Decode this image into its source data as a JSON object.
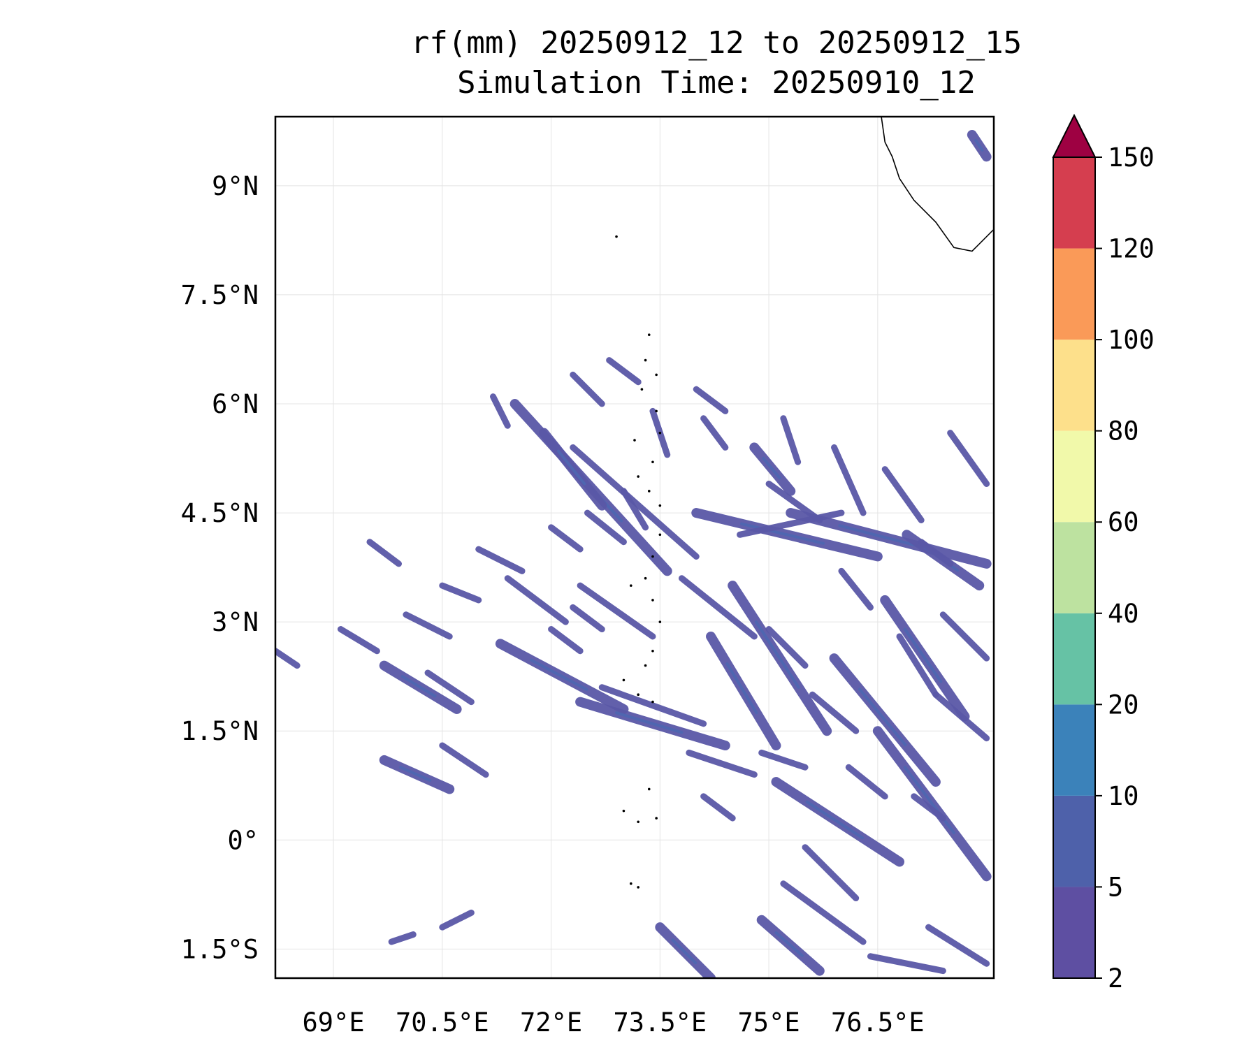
{
  "title": {
    "line1": "rf(mm) 20250912_12 to 20250912_15",
    "line2": "Simulation Time: 20250910_12"
  },
  "map": {
    "extent_lon": [
      68.2,
      78.1
    ],
    "extent_lat": [
      -1.9,
      9.95
    ],
    "lon_ticks": [
      {
        "value": 69.0,
        "label": "69°E"
      },
      {
        "value": 70.5,
        "label": "70.5°E"
      },
      {
        "value": 72.0,
        "label": "72°E"
      },
      {
        "value": 73.5,
        "label": "73.5°E"
      },
      {
        "value": 75.0,
        "label": "75°E"
      },
      {
        "value": 76.5,
        "label": "76.5°E"
      }
    ],
    "lat_ticks": [
      {
        "value": 9.0,
        "label": "9°N"
      },
      {
        "value": 7.5,
        "label": "7.5°N"
      },
      {
        "value": 6.0,
        "label": "6°N"
      },
      {
        "value": 4.5,
        "label": "4.5°N"
      },
      {
        "value": 3.0,
        "label": "3°N"
      },
      {
        "value": 1.5,
        "label": "1.5°N"
      },
      {
        "value": 0.0,
        "label": "0°"
      },
      {
        "value": -1.5,
        "label": "1.5°S"
      }
    ],
    "grid": true,
    "coastline_color": "#000000",
    "rain_color_main": "#5a57a6",
    "rain_color_mid": "#4f66b0"
  },
  "colorbar": {
    "levels": [
      {
        "label": "2",
        "color": "#5e4fa2"
      },
      {
        "label": "5",
        "color": "#4e61aa"
      },
      {
        "label": "10",
        "color": "#3b82ba"
      },
      {
        "label": "20",
        "color": "#66c2a5"
      },
      {
        "label": "40",
        "color": "#bde2a0"
      },
      {
        "label": "60",
        "color": "#f1f9aa"
      },
      {
        "label": "80",
        "color": "#fde08b"
      },
      {
        "label": "100",
        "color": "#fa9a58"
      },
      {
        "label": "120",
        "color": "#d53e4f"
      },
      {
        "label": "150",
        "color": ""
      }
    ],
    "extend_color": "#9e0142",
    "extend": "max"
  },
  "rain_bands": [
    [
      71.5,
      6.0,
      73.6,
      3.7,
      1
    ],
    [
      72.3,
      5.4,
      74.0,
      3.9,
      0
    ],
    [
      71.9,
      5.6,
      72.7,
      4.6,
      1
    ],
    [
      73.4,
      5.9,
      73.6,
      5.3,
      0
    ],
    [
      74.1,
      5.8,
      74.4,
      5.4,
      0
    ],
    [
      74.0,
      4.5,
      76.5,
      3.9,
      1
    ],
    [
      74.6,
      4.2,
      76.0,
      4.5,
      0
    ],
    [
      75.3,
      4.5,
      78.0,
      3.8,
      1
    ],
    [
      76.9,
      4.2,
      77.9,
      3.5,
      1
    ],
    [
      76.6,
      5.1,
      77.1,
      4.4,
      0
    ],
    [
      75.9,
      5.4,
      76.3,
      4.5,
      0
    ],
    [
      75.2,
      5.8,
      75.4,
      5.2,
      0
    ],
    [
      71.3,
      2.7,
      73.0,
      1.8,
      1
    ],
    [
      72.4,
      3.5,
      73.4,
      2.8,
      0
    ],
    [
      72.4,
      1.9,
      74.4,
      1.3,
      1
    ],
    [
      72.7,
      2.1,
      74.1,
      1.6,
      0
    ],
    [
      73.8,
      3.6,
      74.8,
      2.8,
      0
    ],
    [
      74.2,
      2.8,
      75.1,
      1.3,
      1
    ],
    [
      74.5,
      3.5,
      75.8,
      1.5,
      1
    ],
    [
      75.9,
      2.5,
      77.3,
      0.8,
      1
    ],
    [
      76.6,
      3.3,
      77.7,
      1.7,
      1
    ],
    [
      77.3,
      2.0,
      78.0,
      1.4,
      0
    ],
    [
      76.5,
      1.5,
      78.0,
      -0.5,
      1
    ],
    [
      75.5,
      -0.1,
      76.2,
      -0.8,
      0
    ],
    [
      75.1,
      0.8,
      76.8,
      -0.3,
      1
    ],
    [
      75.2,
      -0.6,
      76.3,
      -1.4,
      0
    ],
    [
      74.9,
      -1.1,
      75.7,
      -1.8,
      1
    ],
    [
      73.5,
      -1.2,
      74.2,
      -1.9,
      1
    ],
    [
      76.4,
      -1.6,
      77.4,
      -1.8,
      0
    ],
    [
      77.2,
      -1.2,
      78.0,
      -1.7,
      0
    ],
    [
      69.7,
      2.4,
      70.7,
      1.8,
      1
    ],
    [
      70.3,
      2.3,
      70.9,
      1.9,
      0
    ],
    [
      69.7,
      1.1,
      70.6,
      0.7,
      1
    ],
    [
      70.5,
      1.3,
      71.1,
      0.9,
      0
    ],
    [
      68.2,
      2.6,
      68.5,
      2.4,
      0
    ],
    [
      69.1,
      2.9,
      69.6,
      2.6,
      0
    ],
    [
      70.0,
      3.1,
      70.6,
      2.8,
      0
    ],
    [
      70.5,
      3.5,
      71.0,
      3.3,
      0
    ],
    [
      71.0,
      4.0,
      71.6,
      3.7,
      0
    ],
    [
      71.4,
      3.6,
      72.2,
      3.0,
      0
    ],
    [
      69.5,
      4.1,
      69.9,
      3.8,
      0
    ],
    [
      72.0,
      2.9,
      72.4,
      2.6,
      0
    ],
    [
      73.9,
      1.2,
      74.8,
      0.9,
      0
    ],
    [
      74.9,
      1.2,
      75.5,
      1.0,
      0
    ],
    [
      76.1,
      1.0,
      76.6,
      0.6,
      0
    ],
    [
      72.0,
      4.3,
      72.4,
      4.0,
      0
    ],
    [
      72.3,
      3.2,
      72.7,
      2.9,
      0
    ],
    [
      76.8,
      2.8,
      77.3,
      2.0,
      0
    ],
    [
      77.4,
      3.1,
      78.0,
      2.5,
      0
    ],
    [
      74.0,
      6.2,
      74.4,
      5.9,
      0
    ],
    [
      72.3,
      6.4,
      72.7,
      6.0,
      0
    ],
    [
      71.2,
      6.1,
      71.4,
      5.7,
      0
    ],
    [
      72.8,
      6.6,
      73.2,
      6.3,
      0
    ],
    [
      74.8,
      5.4,
      75.3,
      4.8,
      1
    ],
    [
      75.0,
      4.9,
      75.7,
      4.4,
      0
    ],
    [
      73.0,
      4.8,
      73.3,
      4.3,
      0
    ],
    [
      72.5,
      4.5,
      73.0,
      4.1,
      0
    ],
    [
      77.1,
      4.1,
      77.5,
      3.8,
      0
    ],
    [
      75.6,
      2.0,
      76.2,
      1.5,
      0
    ],
    [
      74.1,
      0.6,
      74.5,
      0.3,
      0
    ],
    [
      77.0,
      0.6,
      77.4,
      0.3,
      0
    ],
    [
      70.5,
      -1.2,
      70.9,
      -1.0,
      0
    ],
    [
      69.8,
      -1.4,
      70.1,
      -1.3,
      0
    ],
    [
      75.0,
      2.9,
      75.5,
      2.4,
      0
    ],
    [
      76.0,
      3.7,
      76.4,
      3.2,
      0
    ],
    [
      77.5,
      5.6,
      78.0,
      4.9,
      0
    ],
    [
      77.8,
      9.7,
      78.0,
      9.4,
      1
    ]
  ],
  "islands": [
    [
      73.35,
      6.95
    ],
    [
      73.3,
      6.6
    ],
    [
      73.45,
      6.4
    ],
    [
      73.25,
      6.2
    ],
    [
      73.45,
      5.9
    ],
    [
      73.5,
      5.6
    ],
    [
      73.15,
      5.5
    ],
    [
      73.4,
      5.2
    ],
    [
      73.2,
      5.0
    ],
    [
      73.35,
      4.8
    ],
    [
      73.5,
      4.6
    ],
    [
      73.5,
      4.2
    ],
    [
      73.4,
      3.9
    ],
    [
      73.3,
      3.6
    ],
    [
      73.1,
      3.5
    ],
    [
      73.4,
      3.3
    ],
    [
      73.5,
      3.0
    ],
    [
      73.4,
      2.6
    ],
    [
      73.3,
      2.4
    ],
    [
      73.0,
      2.2
    ],
    [
      73.2,
      2.0
    ],
    [
      73.4,
      1.9
    ],
    [
      73.35,
      0.7
    ],
    [
      73.2,
      0.25
    ],
    [
      73.0,
      0.4
    ],
    [
      73.45,
      0.3
    ],
    [
      73.1,
      -0.6
    ],
    [
      73.2,
      -0.65
    ],
    [
      72.9,
      8.3
    ]
  ]
}
